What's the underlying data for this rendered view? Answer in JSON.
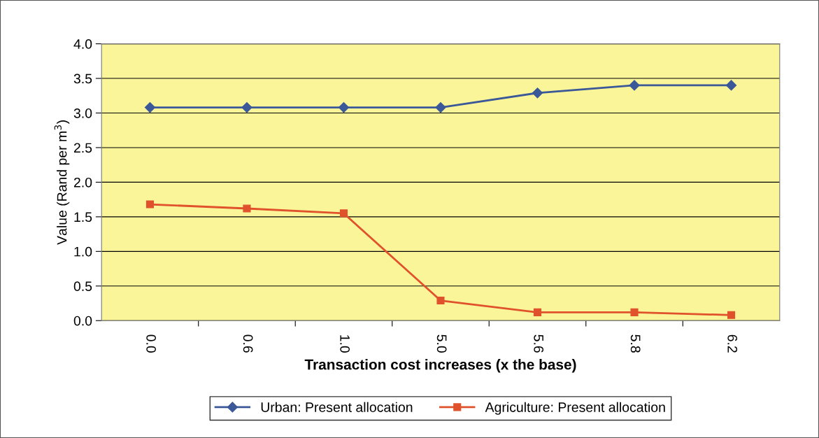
{
  "chart_data": {
    "type": "line",
    "xlabel": "Transaction cost increases (x the base)",
    "ylabel": "Value (Rand per m$^{3}$)",
    "categories": [
      "0.0",
      "0.6",
      "1.0",
      "5.0",
      "5.6",
      "5.8",
      "6.2"
    ],
    "series": [
      {
        "name": "Urban: Present allocation",
        "color": "#3b5898",
        "marker": "diamond",
        "values": [
          3.08,
          3.08,
          3.08,
          3.08,
          3.29,
          3.4,
          3.4
        ]
      },
      {
        "name": "Agriculture: Present allocation",
        "color": "#e0522c",
        "marker": "square",
        "values": [
          1.68,
          1.62,
          1.55,
          0.29,
          0.12,
          0.12,
          0.08
        ]
      }
    ],
    "ylim": [
      0,
      4
    ],
    "yticks": [
      {
        "value": 0,
        "label": "0.0"
      },
      {
        "value": 0.5,
        "label": "0.5"
      },
      {
        "value": 1,
        "label": "1.0"
      },
      {
        "value": 1.5,
        "label": "1.5"
      },
      {
        "value": 2,
        "label": "2.0"
      },
      {
        "value": 2.5,
        "label": "2.5"
      },
      {
        "value": 3,
        "label": "3.0"
      },
      {
        "value": 3.5,
        "label": "3.5"
      },
      {
        "value": 4,
        "label": "4.0"
      }
    ],
    "grid": "y",
    "legend": "bottom",
    "line_style": "solid"
  }
}
